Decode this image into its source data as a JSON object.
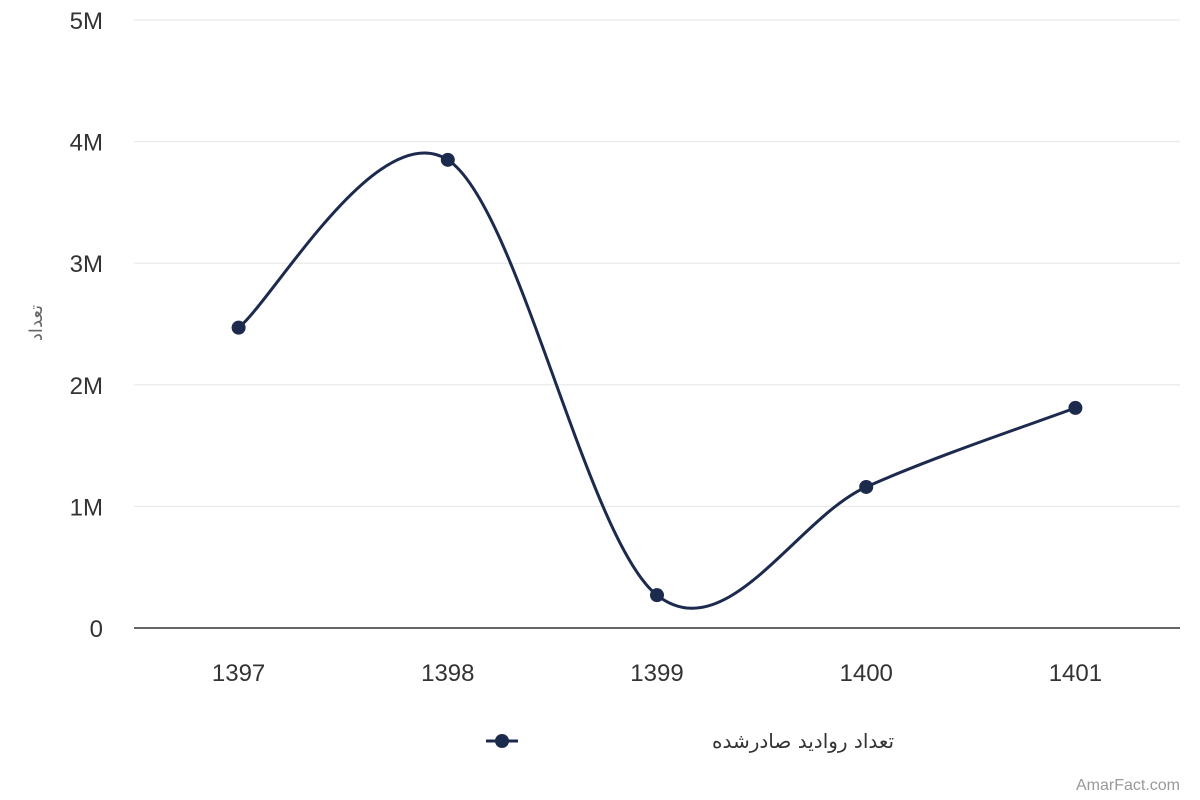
{
  "chart_data": {
    "type": "line",
    "smooth": true,
    "categories": [
      "1397",
      "1398",
      "1399",
      "1400",
      "1401"
    ],
    "series": [
      {
        "name": "تعداد روادید صادرشده",
        "color": "#1c2a4d",
        "values": [
          2470000,
          3850000,
          270000,
          1160000,
          1810000
        ]
      }
    ],
    "ylabel": "تعداد",
    "ylim": [
      0,
      5000000
    ],
    "yticks": [
      {
        "value": 0,
        "label": "0"
      },
      {
        "value": 1000000,
        "label": "1M"
      },
      {
        "value": 2000000,
        "label": "2M"
      },
      {
        "value": 3000000,
        "label": "3M"
      },
      {
        "value": 4000000,
        "label": "4M"
      },
      {
        "value": 5000000,
        "label": "5M"
      }
    ],
    "grid": true,
    "legend_position": "bottom-center"
  },
  "credit": "AmarFact.com"
}
